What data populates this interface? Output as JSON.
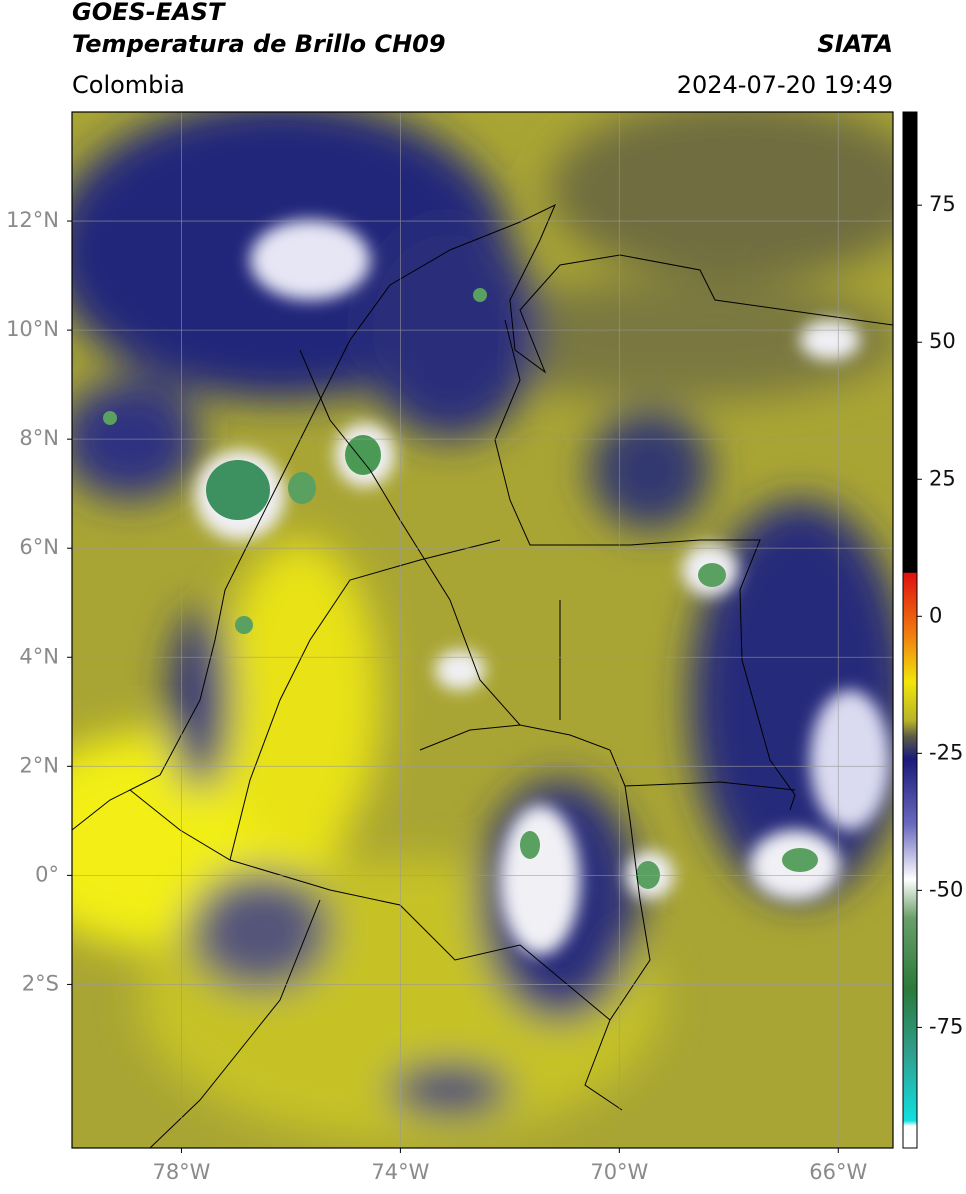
{
  "header": {
    "title_line1": "GOES-EAST",
    "title_line2": "Temperatura de Brillo CH09",
    "region": "Colombia",
    "source": "SIATA",
    "datetime": "2024-07-20 19:49"
  },
  "map": {
    "xlim": [
      -80,
      -65
    ],
    "ylim": [
      -5,
      14
    ],
    "xticks": [
      {
        "value": -78,
        "label": "78°W"
      },
      {
        "value": -74,
        "label": "74°W"
      },
      {
        "value": -70,
        "label": "70°W"
      },
      {
        "value": -66,
        "label": "66°W"
      }
    ],
    "yticks": [
      {
        "value": 12,
        "label": "12°N"
      },
      {
        "value": 10,
        "label": "10°N"
      },
      {
        "value": 8,
        "label": "8°N"
      },
      {
        "value": 6,
        "label": "6°N"
      },
      {
        "value": 4,
        "label": "4°N"
      },
      {
        "value": 2,
        "label": "2°N"
      },
      {
        "value": 0,
        "label": "0°"
      },
      {
        "value": -2,
        "label": "2°S"
      }
    ],
    "grid": true
  },
  "colorbar": {
    "lim": [
      -97,
      92
    ],
    "ticks": [
      75,
      50,
      25,
      0,
      -25,
      -50,
      -75
    ],
    "stops": [
      {
        "value": 8,
        "color": "#000000"
      },
      {
        "value": 7.9,
        "color": "#e01010"
      },
      {
        "value": -3,
        "color": "#f07a10"
      },
      {
        "value": -12,
        "color": "#f2e60a"
      },
      {
        "value": -19,
        "color": "#b8b428"
      },
      {
        "value": -22,
        "color": "#5a5a48"
      },
      {
        "value": -26,
        "color": "#1a1a7a"
      },
      {
        "value": -38,
        "color": "#6a6ac0"
      },
      {
        "value": -48,
        "color": "#ffffff"
      },
      {
        "value": -55,
        "color": "#6aa06a"
      },
      {
        "value": -68,
        "color": "#2a7a3a"
      },
      {
        "value": -80,
        "color": "#30a090"
      },
      {
        "value": -92,
        "color": "#10e0e0"
      },
      {
        "value": -93,
        "color": "#ffffff"
      }
    ]
  }
}
